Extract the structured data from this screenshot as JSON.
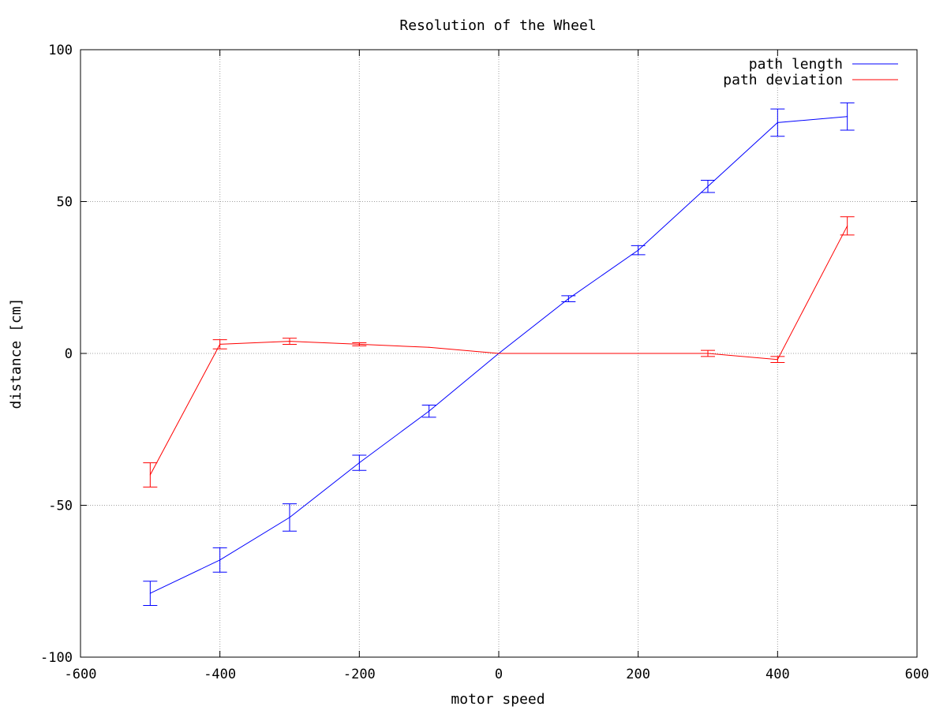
{
  "chart_data": {
    "type": "line",
    "title": "Resolution of the Wheel",
    "xlabel": "motor speed",
    "ylabel": "distance [cm]",
    "xlim": [
      -600,
      600
    ],
    "ylim": [
      -100,
      100
    ],
    "xticks": [
      -600,
      -400,
      -200,
      0,
      200,
      400,
      600
    ],
    "yticks": [
      -100,
      -50,
      0,
      50,
      100
    ],
    "grid": true,
    "legend_position": "top-right",
    "series": [
      {
        "name": "path length",
        "color": "#0000ff",
        "x": [
          -500,
          -400,
          -300,
          -200,
          -100,
          0,
          100,
          200,
          300,
          400,
          500
        ],
        "y": [
          -79,
          -68,
          -54,
          -36,
          -19,
          0,
          18,
          34,
          55,
          76,
          78
        ],
        "error": [
          4,
          4,
          4.5,
          2.5,
          2,
          0,
          1,
          1.5,
          2,
          4.5,
          4.5
        ]
      },
      {
        "name": "path deviation",
        "color": "#ff0000",
        "x": [
          -500,
          -400,
          -300,
          -200,
          -100,
          0,
          100,
          200,
          300,
          400,
          500
        ],
        "y": [
          -40,
          3,
          4,
          3,
          2,
          0,
          0,
          0,
          0,
          -2,
          42
        ],
        "error": [
          4,
          1.5,
          1,
          0.5,
          0,
          0,
          0,
          0,
          1,
          1,
          3
        ]
      }
    ]
  }
}
